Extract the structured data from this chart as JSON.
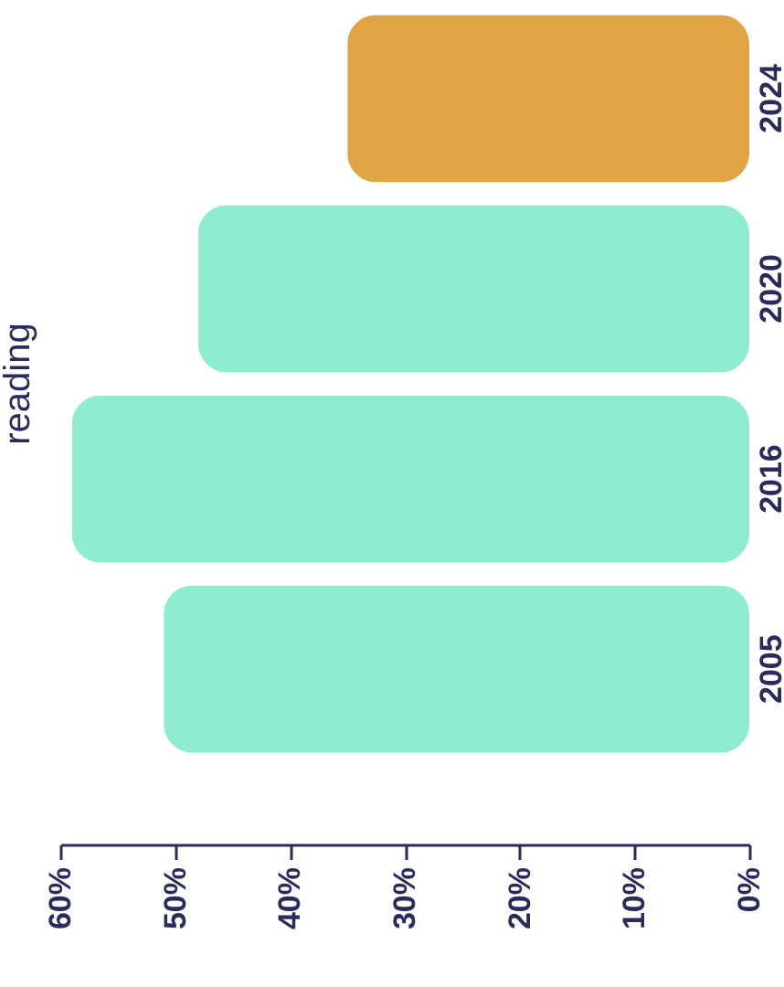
{
  "chart_data": {
    "type": "bar",
    "orientation": "horizontal",
    "title": "reading",
    "categories": [
      "2024",
      "2020",
      "2016",
      "2005"
    ],
    "values": [
      35,
      48,
      59,
      51
    ],
    "colors": [
      "#e0a445",
      "#8eecd0",
      "#8eecd0",
      "#8eecd0"
    ],
    "xlim": [
      60,
      0
    ],
    "xticks": [
      {
        "value": 60,
        "label": "60%"
      },
      {
        "value": 50,
        "label": "50%"
      },
      {
        "value": 40,
        "label": "40%"
      },
      {
        "value": 30,
        "label": "30%"
      },
      {
        "value": 20,
        "label": "20%"
      },
      {
        "value": 10,
        "label": "10%"
      },
      {
        "value": 0,
        "label": "0%"
      }
    ]
  }
}
